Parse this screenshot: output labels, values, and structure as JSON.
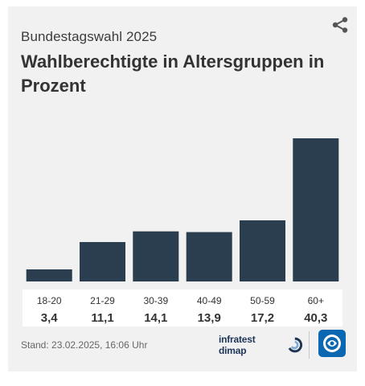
{
  "header": {
    "supertitle": "Bundestagswahl 2025",
    "title": "Wahlberechtigte in Altersgruppen in Prozent"
  },
  "footer": {
    "stand": "Stand:  23.02.2025, 16:06 Uhr",
    "source_logo_text": "infratest dimap"
  },
  "icons": {
    "share": "share-icon",
    "source_logo": "infratest-dimap-logo",
    "broadcaster_logo": "tagesschau-logo"
  },
  "colors": {
    "bar": "#2b3e50",
    "card_background": "#f1f1f1",
    "label_background": "#ffffff",
    "logo_blue": "#0a67b2"
  },
  "chart_data": {
    "type": "bar",
    "categories": [
      "18-20",
      "21-29",
      "30-39",
      "40-49",
      "50-59",
      "60+"
    ],
    "values": [
      3.4,
      11.1,
      14.1,
      13.9,
      17.2,
      40.3
    ],
    "value_labels": [
      "3,4",
      "11,1",
      "14,1",
      "13,9",
      "17,2",
      "40,3"
    ],
    "grid": false,
    "legend": "none"
  }
}
